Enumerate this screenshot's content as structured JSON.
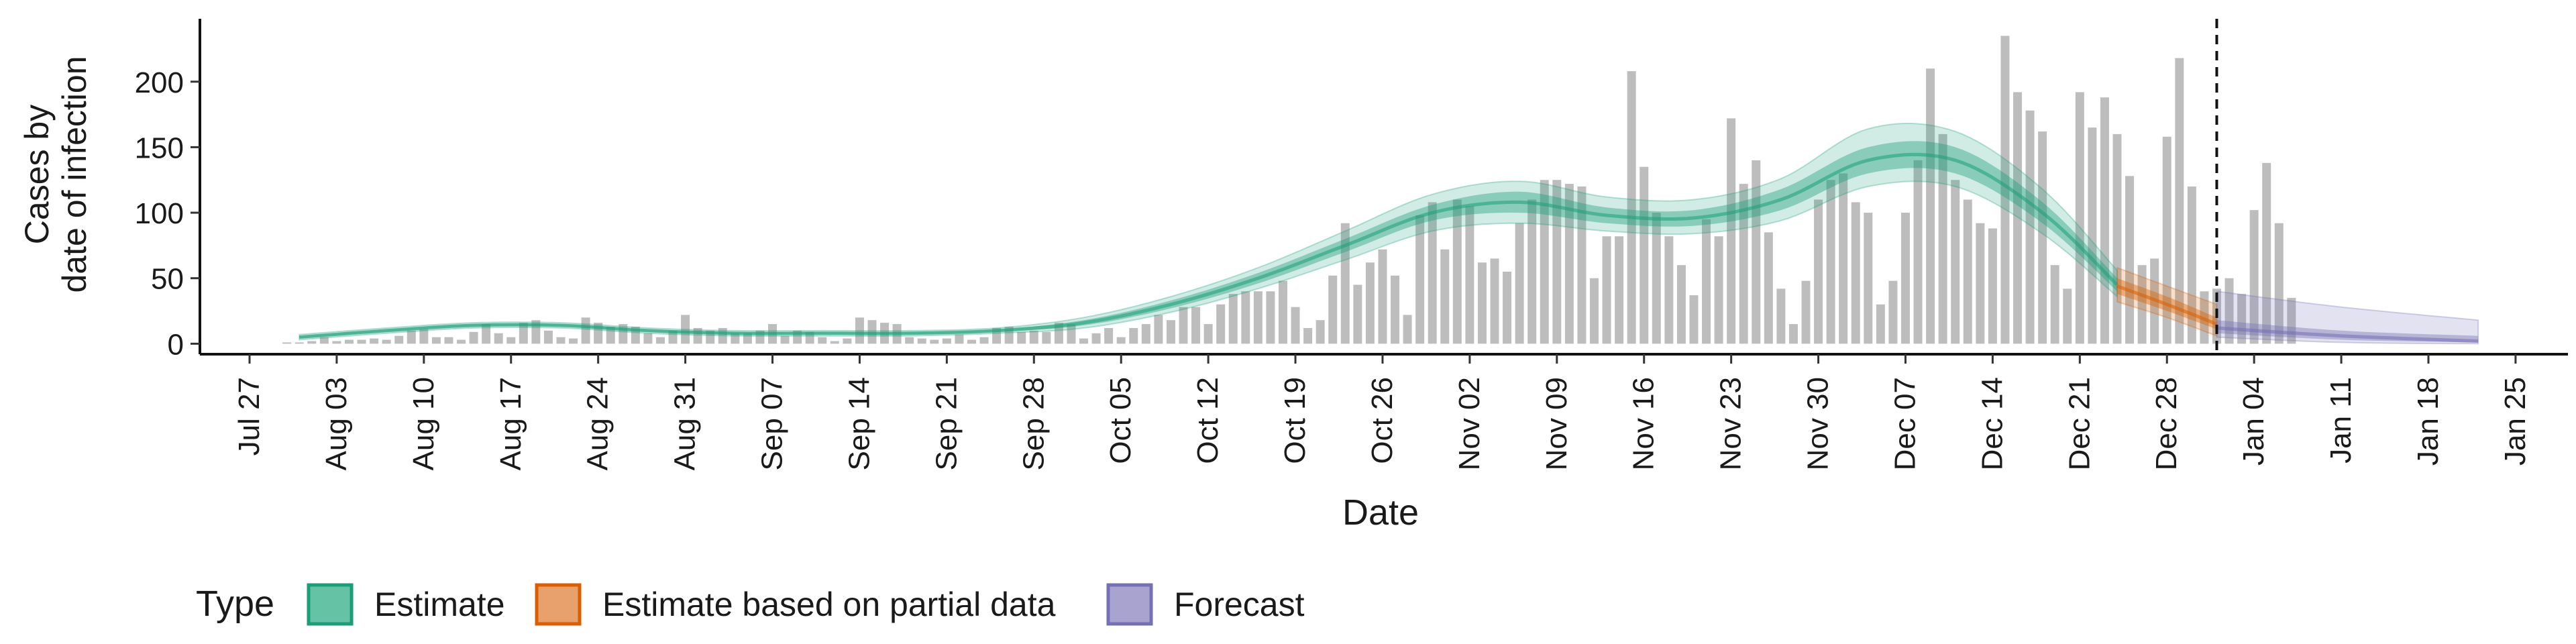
{
  "chart_data": {
    "type": "bar",
    "xlabel": "Date",
    "ylabel_lines": [
      "Cases by",
      "date of infection"
    ],
    "x_ticks": [
      "Jul 27",
      "Aug 03",
      "Aug 10",
      "Aug 17",
      "Aug 24",
      "Aug 31",
      "Sep 07",
      "Sep 14",
      "Sep 21",
      "Sep 28",
      "Oct 05",
      "Oct 12",
      "Oct 19",
      "Oct 26",
      "Nov 02",
      "Nov 09",
      "Nov 16",
      "Nov 23",
      "Nov 30",
      "Dec 07",
      "Dec 14",
      "Dec 21",
      "Dec 28",
      "Jan 04",
      "Jan 11",
      "Jan 18",
      "Jan 25"
    ],
    "y_ticks": [
      0,
      50,
      100,
      150,
      200
    ],
    "ylim": [
      -8,
      248
    ],
    "grid": false,
    "bars": {
      "start_date": "2020-07-30",
      "values": [
        1,
        1,
        2,
        5,
        2,
        3,
        3,
        4,
        3,
        6,
        10,
        11,
        5,
        5,
        3,
        9,
        15,
        8,
        5,
        16,
        18,
        10,
        5,
        4,
        20,
        16,
        13,
        15,
        13,
        8,
        5,
        10,
        22,
        12,
        10,
        12,
        8,
        8,
        10,
        15,
        6,
        10,
        9,
        5,
        2,
        4,
        20,
        18,
        16,
        15,
        5,
        4,
        3,
        4,
        7,
        3,
        5,
        12,
        13,
        9,
        10,
        9,
        16,
        15,
        4,
        8,
        12,
        5,
        12,
        15,
        22,
        18,
        28,
        28,
        15,
        30,
        38,
        40,
        40,
        40,
        48,
        28,
        12,
        18,
        52,
        92,
        45,
        62,
        72,
        52,
        22,
        98,
        108,
        72,
        110,
        105,
        62,
        65,
        55,
        92,
        110,
        125,
        125,
        122,
        120,
        50,
        82,
        82,
        208,
        135,
        100,
        82,
        60,
        37,
        95,
        82,
        172,
        122,
        140,
        85,
        42,
        15,
        48,
        110,
        125,
        130,
        108,
        100,
        30,
        48,
        100,
        140,
        210,
        160,
        125,
        110,
        92,
        88,
        235,
        192,
        178,
        162,
        60,
        42,
        192,
        165,
        188,
        160,
        128,
        60,
        65,
        158,
        218,
        120,
        40,
        42,
        50,
        38,
        102,
        138,
        92,
        35
      ]
    },
    "estimate_band": {
      "dates": [
        "2020-07-31",
        "2020-08-07",
        "2020-08-14",
        "2020-08-21",
        "2020-08-28",
        "2020-09-04",
        "2020-09-11",
        "2020-09-18",
        "2020-09-25",
        "2020-10-02",
        "2020-10-09",
        "2020-10-16",
        "2020-10-23",
        "2020-10-30",
        "2020-11-06",
        "2020-11-13",
        "2020-11-20",
        "2020-11-27",
        "2020-12-04",
        "2020-12-11",
        "2020-12-18",
        "2020-12-24"
      ],
      "median": [
        5,
        10,
        14,
        14,
        10,
        8,
        8,
        8,
        10,
        16,
        30,
        50,
        75,
        100,
        108,
        98,
        96,
        110,
        140,
        140,
        100,
        45
      ],
      "lower_50": [
        4,
        9,
        13,
        13,
        9,
        7,
        7,
        7,
        9,
        14,
        27,
        46,
        70,
        94,
        100,
        92,
        90,
        102,
        130,
        130,
        92,
        40
      ],
      "upper_50": [
        6,
        11,
        15,
        15,
        11,
        9,
        9,
        9,
        11,
        18,
        33,
        54,
        80,
        106,
        116,
        104,
        102,
        118,
        150,
        150,
        108,
        50
      ],
      "lower_90": [
        3,
        8,
        12,
        12,
        8,
        6,
        6,
        6,
        8,
        12,
        24,
        42,
        64,
        86,
        92,
        86,
        84,
        94,
        120,
        120,
        84,
        36
      ],
      "upper_90": [
        7,
        12,
        16,
        16,
        12,
        10,
        10,
        10,
        12,
        20,
        36,
        58,
        86,
        114,
        124,
        112,
        110,
        126,
        164,
        162,
        118,
        56
      ]
    },
    "partial_band": {
      "dates": [
        "2020-12-24",
        "2020-12-28",
        "2021-01-01"
      ],
      "median": [
        44,
        30,
        15
      ],
      "lower_50": [
        38,
        25,
        11
      ],
      "upper_50": [
        50,
        36,
        20
      ],
      "lower_90": [
        32,
        20,
        6
      ],
      "upper_90": [
        58,
        44,
        30
      ]
    },
    "forecast_band": {
      "dates": [
        "2021-01-01",
        "2021-01-11",
        "2021-01-22"
      ],
      "median": [
        12,
        6,
        2
      ],
      "lower_50": [
        8,
        3,
        1
      ],
      "upper_50": [
        18,
        10,
        6
      ],
      "lower_90": [
        5,
        1,
        0
      ],
      "upper_90": [
        40,
        28,
        18
      ]
    },
    "vline_date": "2021-01-01",
    "legend": {
      "title": "Type",
      "placement": "bottom-left",
      "items": [
        {
          "label": "Estimate",
          "fill": "#66c2a5",
          "stroke": "#1b9e77"
        },
        {
          "label": "Estimate based on partial data",
          "fill": "#e8a06c",
          "stroke": "#d95f02"
        },
        {
          "label": "Forecast",
          "fill": "#a9a3cf",
          "stroke": "#7570b3"
        }
      ]
    },
    "colors": {
      "bars": "#bdbdbd",
      "estimate": "#1b9e77",
      "partial": "#d95f02",
      "forecast": "#7570b3"
    }
  }
}
